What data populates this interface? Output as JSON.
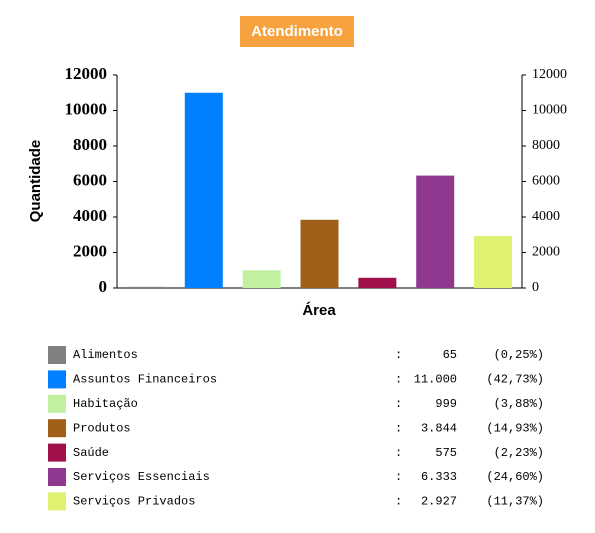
{
  "chart_data": {
    "type": "bar",
    "title": "Atendimento",
    "ylabel": "Quantidade",
    "xlabel": "Área",
    "categories": [
      "Alimentos",
      "Assuntos Financeiros",
      "Habitação",
      "Produtos",
      "Saúde",
      "Serviços Essenciais",
      "Serviços Privados"
    ],
    "values": [
      65,
      11000,
      999,
      3844,
      575,
      6333,
      2927
    ],
    "value_labels": [
      "65",
      "11.000",
      "999",
      "3.844",
      "575",
      "6.333",
      "2.927"
    ],
    "shares": [
      0.25,
      42.73,
      3.88,
      14.93,
      2.23,
      24.6,
      11.37
    ],
    "share_labels": [
      "(0,25%)",
      "(42,73%)",
      "(3,88%)",
      "(14,93%)",
      "(2,23%)",
      "(24,60%)",
      "(11,37%)"
    ],
    "separator": ":",
    "colors": [
      "#808080",
      "#0080ff",
      "#c0f0a0",
      "#a0601a",
      "#a0104a",
      "#903890",
      "#e0f070"
    ],
    "ylim": [
      0,
      12000
    ],
    "yticks": [
      0,
      2000,
      4000,
      6000,
      8000,
      10000,
      12000
    ],
    "y2lim": [
      0,
      12000
    ],
    "y2ticks": [
      0,
      2000,
      4000,
      6000,
      8000,
      10000,
      12000
    ],
    "grid": false
  }
}
